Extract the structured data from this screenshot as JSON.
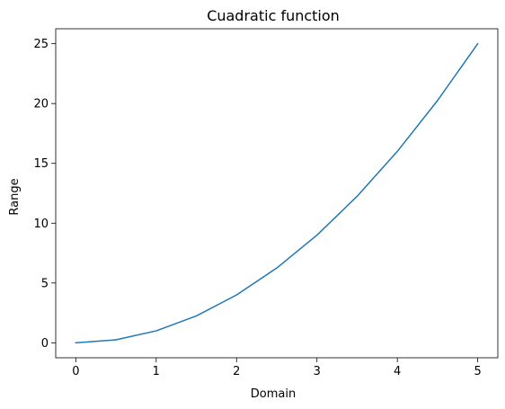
{
  "chart_data": {
    "type": "line",
    "title": "Cuadratic function",
    "xlabel": "Domain",
    "ylabel": "Range",
    "xlim": [
      -0.25,
      5.25
    ],
    "ylim": [
      -1.25,
      26.25
    ],
    "x_ticks": [
      0,
      1,
      2,
      3,
      4,
      5
    ],
    "y_ticks": [
      0,
      5,
      10,
      15,
      20,
      25
    ],
    "grid": false,
    "series": [
      {
        "color": "#1f77b4",
        "x": [
          0,
          0.5,
          1,
          1.5,
          2,
          2.5,
          3,
          3.5,
          4,
          4.5,
          5
        ],
        "y": [
          0,
          0.25,
          1,
          2.25,
          4,
          6.25,
          9,
          12.25,
          16,
          20.25,
          25
        ]
      }
    ]
  }
}
